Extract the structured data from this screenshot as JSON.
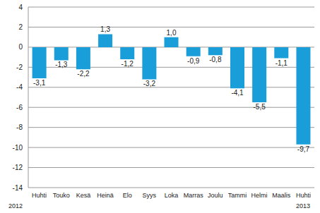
{
  "chart_data": {
    "type": "bar",
    "categories": [
      "Huhti",
      "Touko",
      "Kesä",
      "Heinä",
      "Elo",
      "Syys",
      "Loka",
      "Marras",
      "Joulu",
      "Tammi",
      "Helmi",
      "Maalis",
      "Huhti"
    ],
    "values": [
      -3.1,
      -1.3,
      -2.2,
      1.3,
      -1.2,
      -3.2,
      1.0,
      -0.9,
      -0.8,
      -4.1,
      -5.5,
      -1.1,
      -9.7
    ],
    "value_labels": [
      "-3,1",
      "-1,3",
      "-2,2",
      "1,3",
      "-1,2",
      "-3,2",
      "1,0",
      "-0,9",
      "-0,8",
      "-4,1",
      "-5,5",
      "-1,1",
      "-9,7"
    ],
    "data_labels": true,
    "annotations": [
      "2012",
      "2013"
    ],
    "color": "#1a9ed9",
    "ylim": [
      -14,
      4
    ],
    "yticks": [
      -14,
      -12,
      -10,
      -8,
      -6,
      -4,
      -2,
      0,
      2,
      4
    ],
    "grid": true
  }
}
